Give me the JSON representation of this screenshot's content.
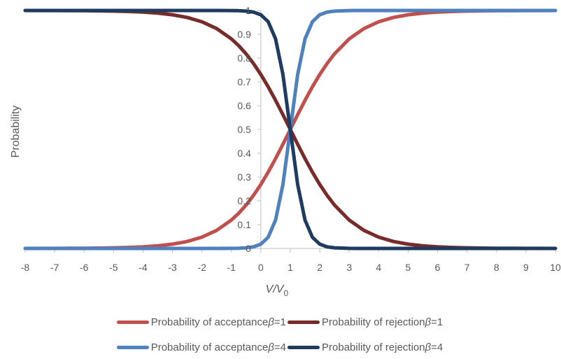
{
  "chart_data": {
    "type": "line",
    "xlabel": "V/V",
    "xlabel_subscript": "0",
    "ylabel": "Probability",
    "xlim": [
      -8,
      10
    ],
    "ylim": [
      0,
      1
    ],
    "x_ticks": [
      "-8",
      "-7",
      "-6",
      "-5",
      "-4",
      "-3",
      "-2",
      "-1",
      "0",
      "1",
      "2",
      "3",
      "4",
      "5",
      "6",
      "7",
      "8",
      "9",
      "10"
    ],
    "y_ticks": [
      "0",
      "0.1",
      "0.2",
      "0.3",
      "0.4",
      "0.5",
      "0.6",
      "0.7",
      "0.8",
      "0.9",
      "1"
    ],
    "grid": false,
    "legend_position": "bottom",
    "x": [
      -8,
      -7.5,
      -7,
      -6.5,
      -6,
      -5.5,
      -5,
      -4.5,
      -4,
      -3.5,
      -3,
      -2.5,
      -2,
      -1.5,
      -1,
      -0.75,
      -0.5,
      -0.25,
      0,
      0.25,
      0.5,
      0.75,
      1,
      1.25,
      1.5,
      1.75,
      2,
      2.25,
      2.5,
      3,
      3.5,
      4,
      4.5,
      5,
      5.5,
      6,
      6.5,
      7,
      7.5,
      8,
      8.5,
      9,
      9.5,
      10
    ],
    "series": [
      {
        "name": "Probability of acceptance β=1",
        "color": "#C0504D",
        "values": [
          0.0001,
          0.0002,
          0.0003,
          0.0006,
          0.0009,
          0.0015,
          0.0025,
          0.0041,
          0.0067,
          0.011,
          0.018,
          0.0293,
          0.0474,
          0.0759,
          0.1192,
          0.148,
          0.1824,
          0.2227,
          0.2689,
          0.3208,
          0.3775,
          0.4378,
          0.5,
          0.5622,
          0.6225,
          0.6792,
          0.7311,
          0.7773,
          0.8176,
          0.8808,
          0.9241,
          0.9526,
          0.9707,
          0.982,
          0.989,
          0.9933,
          0.9959,
          0.9975,
          0.9985,
          0.9991,
          0.9994,
          0.9997,
          0.9998,
          0.9999
        ]
      },
      {
        "name": "Probability of rejection β=1",
        "color": "#772C2A",
        "values": [
          0.9999,
          0.9998,
          0.9997,
          0.9994,
          0.9991,
          0.9985,
          0.9975,
          0.9959,
          0.9933,
          0.989,
          0.982,
          0.9707,
          0.9526,
          0.9241,
          0.8808,
          0.852,
          0.8176,
          0.7773,
          0.7311,
          0.6792,
          0.6225,
          0.5622,
          0.5,
          0.4378,
          0.3775,
          0.3208,
          0.2689,
          0.2227,
          0.1824,
          0.1192,
          0.0759,
          0.0474,
          0.0293,
          0.018,
          0.011,
          0.0067,
          0.0041,
          0.0025,
          0.0015,
          0.0009,
          0.0006,
          0.0003,
          0.0002,
          0.0001
        ]
      },
      {
        "name": "Probability of acceptance β=4",
        "color": "#4F81BD",
        "values": [
          0,
          0,
          0,
          0,
          0,
          0,
          0,
          0,
          0,
          0,
          0,
          0,
          0,
          0,
          0.0003,
          0.0009,
          0.0025,
          0.0067,
          0.018,
          0.0474,
          0.1192,
          0.2689,
          0.5,
          0.7311,
          0.8808,
          0.9526,
          0.982,
          0.9933,
          0.9975,
          0.9997,
          1,
          1,
          1,
          1,
          1,
          1,
          1,
          1,
          1,
          1,
          1,
          1,
          1,
          1
        ]
      },
      {
        "name": "Probability of rejection β=4",
        "color": "#1F3B60",
        "values": [
          1,
          1,
          1,
          1,
          1,
          1,
          1,
          1,
          1,
          1,
          1,
          1,
          1,
          1,
          0.9997,
          0.9991,
          0.9975,
          0.9933,
          0.982,
          0.9526,
          0.8808,
          0.7311,
          0.5,
          0.2689,
          0.1192,
          0.0474,
          0.018,
          0.0067,
          0.0025,
          0.0003,
          0,
          0,
          0,
          0,
          0,
          0,
          0,
          0,
          0,
          0,
          0,
          0,
          0,
          0
        ]
      }
    ],
    "legend": [
      {
        "label": "Probability of acceptance ",
        "beta": "β",
        "suffix": "=1",
        "color": "#C0504D"
      },
      {
        "label": "Probability of rejection ",
        "beta": "β",
        "suffix": "=1",
        "color": "#772C2A"
      },
      {
        "label": "Probability of acceptance ",
        "beta": "β",
        "suffix": "=4",
        "color": "#4F81BD"
      },
      {
        "label": "Probability of rejection ",
        "beta": "β",
        "suffix": "=4",
        "color": "#1F3B60"
      }
    ]
  }
}
